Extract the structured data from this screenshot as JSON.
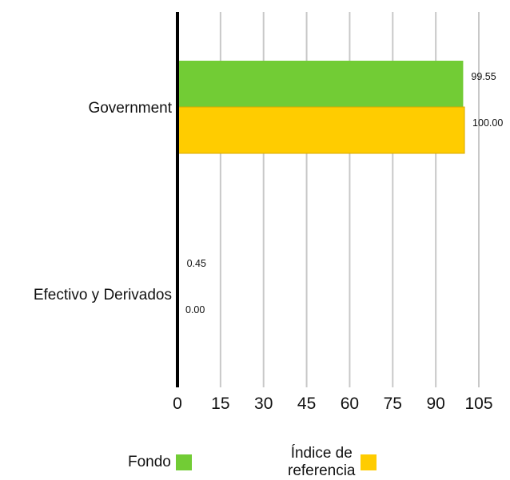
{
  "chart_data": {
    "type": "bar",
    "orientation": "horizontal",
    "categories": [
      "Government",
      "Efectivo y Derivados"
    ],
    "series": [
      {
        "name": "Fondo",
        "values": [
          99.55,
          0.45
        ],
        "labels": [
          "99.55",
          "0.45"
        ],
        "color": "#72cc35"
      },
      {
        "name": "Índice de referencia",
        "values": [
          100.0,
          0.0
        ],
        "labels": [
          "100.00",
          "0.00"
        ],
        "color": "#ffcc00"
      }
    ],
    "xlim": [
      0,
      105
    ],
    "xticks": [
      0,
      15,
      30,
      45,
      60,
      75,
      90,
      105
    ],
    "xtick_labels": [
      "0",
      "15",
      "30",
      "45",
      "60",
      "75",
      "90",
      "105"
    ],
    "grid": true,
    "legend_position": "bottom"
  },
  "legend": {
    "fondo_label": "Fondo",
    "indice_line1": "Índice de",
    "indice_line2": "referencia"
  }
}
